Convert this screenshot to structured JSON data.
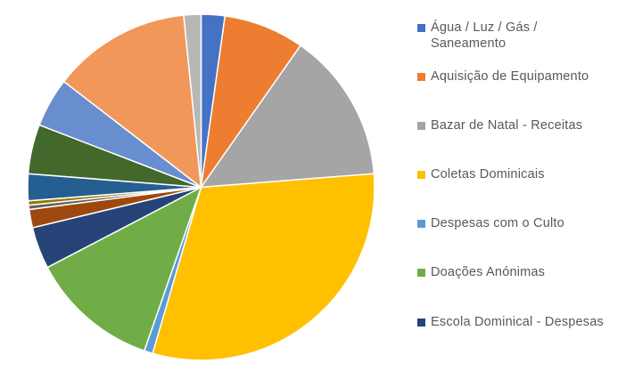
{
  "chart_data": {
    "type": "pie",
    "title": "",
    "legend_position": "right",
    "slices": [
      {
        "label": "Água / Luz / Gás / Saneamento",
        "value": 2.2,
        "color": "#4472C4",
        "in_legend": true
      },
      {
        "label": "Aquisição de Equipamento",
        "value": 7.5,
        "color": "#ED7D31",
        "in_legend": true
      },
      {
        "label": "Bazar de Natal - Receitas",
        "value": 14.0,
        "color": "#A5A5A5",
        "in_legend": true
      },
      {
        "label": "Coletas Dominicais",
        "value": 30.7,
        "color": "#FFC000",
        "in_legend": true
      },
      {
        "label": "Despesas com o Culto",
        "value": 0.8,
        "color": "#5B9BD5",
        "in_legend": true
      },
      {
        "label": "Doações Anónimas",
        "value": 12.0,
        "color": "#70AD47",
        "in_legend": true
      },
      {
        "label": "Escola Dominical - Despesas",
        "value": 3.9,
        "color": "#264478",
        "in_legend": true
      },
      {
        "label": "",
        "value": 1.7,
        "color": "#9E480E",
        "in_legend": false
      },
      {
        "label": "",
        "value": 0.4,
        "color": "#636363",
        "in_legend": false
      },
      {
        "label": "",
        "value": 0.4,
        "color": "#997300",
        "in_legend": false
      },
      {
        "label": "",
        "value": 2.5,
        "color": "#255E91",
        "in_legend": false
      },
      {
        "label": "",
        "value": 4.6,
        "color": "#43682B",
        "in_legend": false
      },
      {
        "label": "",
        "value": 4.6,
        "color": "#698ED0",
        "in_legend": false
      },
      {
        "label": "",
        "value": 12.9,
        "color": "#F1975A",
        "in_legend": false
      },
      {
        "label": "",
        "value": 1.6,
        "color": "#B7B7B7",
        "in_legend": false
      }
    ]
  },
  "legend": {
    "items": [
      {
        "lines": [
          "Água / Luz / Gás /",
          "Saneamento"
        ],
        "color": "#4472C4"
      },
      {
        "lines": [
          "Aquisição de Equipamento"
        ],
        "color": "#ED7D31"
      },
      {
        "lines": [
          "Bazar de Natal - Receitas"
        ],
        "color": "#A5A5A5"
      },
      {
        "lines": [
          "Coletas Dominicais"
        ],
        "color": "#FFC000"
      },
      {
        "lines": [
          "Despesas com o Culto"
        ],
        "color": "#5B9BD5"
      },
      {
        "lines": [
          "Doações Anónimas"
        ],
        "color": "#70AD47"
      },
      {
        "lines": [
          "Escola Dominical - Despesas"
        ],
        "color": "#264478"
      }
    ]
  }
}
